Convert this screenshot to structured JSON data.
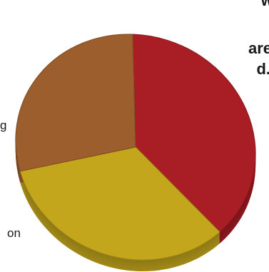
{
  "background_text": [
    {
      "text": "w",
      "style": "bold"
    },
    {
      "text": "are",
      "style": "bold"
    },
    {
      "text": "d.",
      "style": "bold"
    },
    {
      "text": "g",
      "style": "plain"
    },
    {
      "text": "on",
      "style": "plain"
    }
  ],
  "chart_data": {
    "type": "pie",
    "title": "",
    "slices": [
      {
        "value": 38,
        "color": "#a91e25"
      },
      {
        "value": 33,
        "color": "#c4a61d"
      },
      {
        "value": 29,
        "color": "#9c5e2c"
      }
    ],
    "legend": "none",
    "three_d": true
  }
}
